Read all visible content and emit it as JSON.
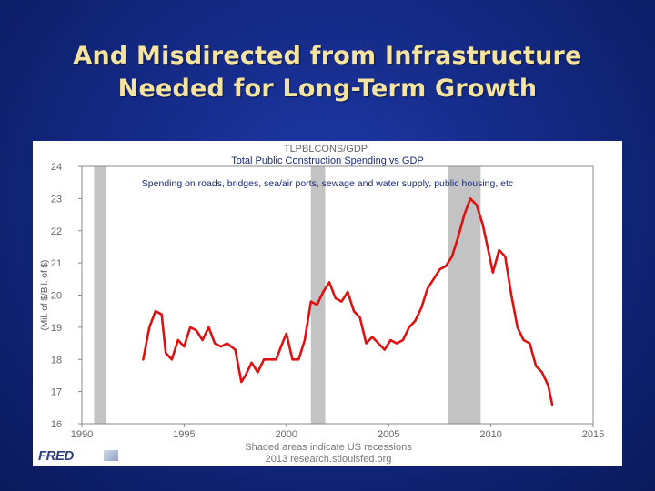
{
  "slide": {
    "title_line1": "And Misdirected from Infrastructure",
    "title_line2": "Needed for Long-Term Growth"
  },
  "overlay": {
    "title": "Total Public Construction Spending vs GDP",
    "subtitle": "Spending on roads, bridges, sea/air ports, sewage and water supply, public housing, etc"
  },
  "fred": {
    "logo_text": "FRED",
    "series_code": "TLPBLCONS/GDP",
    "note": "Shaded areas indicate US recessions",
    "source": "2013 research.stlouisfed.org"
  },
  "colors": {
    "line": "#dd1111",
    "recession": "#c3c3c3",
    "title": "#f5e3a0"
  },
  "chart_data": {
    "type": "line",
    "title": "TLPBLCONS/GDP",
    "ylabel": "(Mil. of $/Bil. of $)",
    "xlabel": "",
    "xlim": [
      1990,
      2015
    ],
    "ylim": [
      16,
      24
    ],
    "x_ticks": [
      1990,
      1995,
      2000,
      2005,
      2010,
      2015
    ],
    "y_ticks": [
      16,
      17,
      18,
      19,
      20,
      21,
      22,
      23,
      24
    ],
    "grid": false,
    "recessions": [
      [
        1990.6,
        1991.2
      ],
      [
        2001.2,
        2001.9
      ],
      [
        2007.9,
        2009.5
      ]
    ],
    "series": [
      {
        "x": [
          1993.0,
          1993.3,
          1993.6,
          1993.9,
          1994.1,
          1994.4,
          1994.7,
          1995.0,
          1995.3,
          1995.6,
          1995.9,
          1996.2,
          1996.5,
          1996.8,
          1997.1,
          1997.5,
          1997.8,
          1998.0,
          1998.3,
          1998.6,
          1998.9,
          1999.2,
          1999.5,
          1999.8,
          2000.0,
          2000.3,
          2000.6,
          2000.9,
          2001.2,
          2001.5,
          2001.8,
          2002.1,
          2002.4,
          2002.7,
          2003.0,
          2003.3,
          2003.6,
          2003.9,
          2004.2,
          2004.5,
          2004.8,
          2005.1,
          2005.4,
          2005.7,
          2006.0,
          2006.3,
          2006.6,
          2006.9,
          2007.2,
          2007.5,
          2007.8,
          2008.1,
          2008.4,
          2008.7,
          2009.0,
          2009.3,
          2009.6,
          2009.9,
          2010.1,
          2010.4,
          2010.7,
          2011.0,
          2011.3,
          2011.6,
          2011.9,
          2012.2,
          2012.5,
          2012.8,
          2013.0
        ],
        "values": [
          18.0,
          19.0,
          19.5,
          19.4,
          18.2,
          18.0,
          18.6,
          18.4,
          19.0,
          18.9,
          18.6,
          19.0,
          18.5,
          18.4,
          18.5,
          18.3,
          17.3,
          17.5,
          17.9,
          17.6,
          18.0,
          18.0,
          18.0,
          18.5,
          18.8,
          18.0,
          18.0,
          18.6,
          19.8,
          19.7,
          20.1,
          20.4,
          19.9,
          19.8,
          20.1,
          19.5,
          19.3,
          18.5,
          18.7,
          18.5,
          18.3,
          18.6,
          18.5,
          18.6,
          19.0,
          19.2,
          19.6,
          20.2,
          20.5,
          20.8,
          20.9,
          21.2,
          21.8,
          22.5,
          23.0,
          22.8,
          22.2,
          21.3,
          20.7,
          21.4,
          21.2,
          20.0,
          19.0,
          18.6,
          18.5,
          17.8,
          17.6,
          17.2,
          16.6
        ]
      }
    ]
  }
}
